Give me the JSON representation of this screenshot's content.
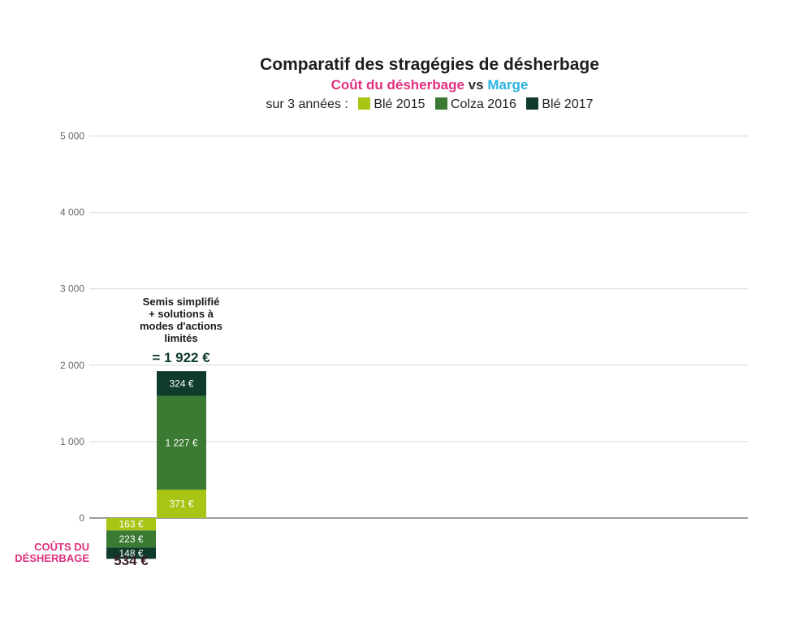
{
  "chart_data": {
    "type": "bar",
    "title": "Comparatif des stragégies de désherbage",
    "subtitle": {
      "cost": "Coût du désherbage",
      "vs": "vs",
      "margin": "Marge"
    },
    "legend_prefix": "sur 3 années :",
    "legend_placement": "top",
    "grid": true,
    "ylim": [
      -534,
      5000
    ],
    "yticks": [
      0,
      1000,
      2000,
      3000,
      4000,
      5000
    ],
    "ytick_labels": [
      "0",
      "1 000",
      "2 000",
      "3 000",
      "4 000",
      "5 000"
    ],
    "series": [
      {
        "name": "Blé 2015",
        "color": "#a8c414"
      },
      {
        "name": "Colza 2016",
        "color": "#3a7a33"
      },
      {
        "name": "Blé 2017",
        "color": "#0f3b2a"
      }
    ],
    "costs": {
      "label_line1": "COÛTS DU",
      "label_line2": "DÉSHERBAGE",
      "total": "534 €",
      "values": [
        163,
        223,
        148
      ],
      "value_labels": [
        "163 €",
        "223 €",
        "148 €"
      ]
    },
    "strategy": {
      "annotation": [
        "Semis simplifié",
        "+ solutions à",
        "modes d'actions",
        "limités"
      ],
      "total": "= 1 922 €",
      "values": [
        371,
        1227,
        324
      ],
      "value_labels": [
        "371 €",
        "1 227 €",
        "324 €"
      ]
    }
  }
}
